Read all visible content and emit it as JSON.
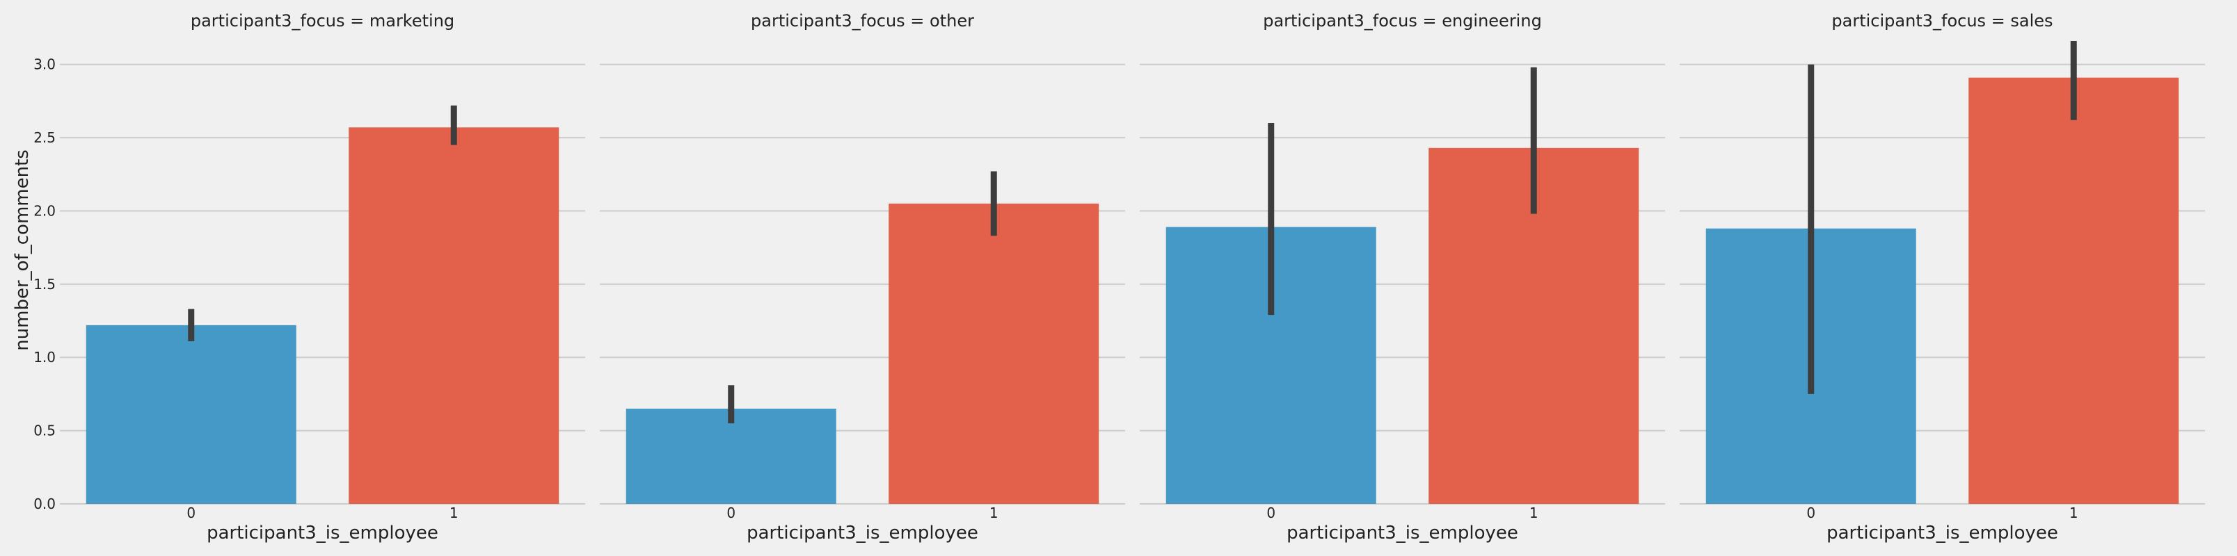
{
  "chart_data": {
    "type": "bar",
    "facet_variable": "participant3_focus",
    "panel_titles": [
      "participant3_focus = marketing",
      "participant3_focus = other",
      "participant3_focus = engineering",
      "participant3_focus = sales"
    ],
    "categories": [
      "0",
      "1"
    ],
    "xlabel": "participant3_is_employee",
    "ylabel": "number_of_comments",
    "ylim": [
      0,
      3.25
    ],
    "yticks": [
      "0.0",
      "0.5",
      "1.0",
      "1.5",
      "2.0",
      "2.5",
      "3.0"
    ],
    "grid": true,
    "colors": [
      "#4499c6",
      "#e3604a"
    ],
    "panels": [
      {
        "facet": "marketing",
        "values": [
          1.22,
          2.57
        ],
        "ci_low": [
          1.11,
          2.45
        ],
        "ci_high": [
          1.33,
          2.72
        ]
      },
      {
        "facet": "other",
        "values": [
          0.65,
          2.05
        ],
        "ci_low": [
          0.55,
          1.83
        ],
        "ci_high": [
          0.81,
          2.27
        ]
      },
      {
        "facet": "engineering",
        "values": [
          1.89,
          2.43
        ],
        "ci_low": [
          1.29,
          1.98
        ],
        "ci_high": [
          2.6,
          2.98
        ]
      },
      {
        "facet": "sales",
        "values": [
          1.88,
          2.91
        ],
        "ci_low": [
          0.75,
          2.62
        ],
        "ci_high": [
          3.0,
          3.16
        ]
      }
    ]
  }
}
